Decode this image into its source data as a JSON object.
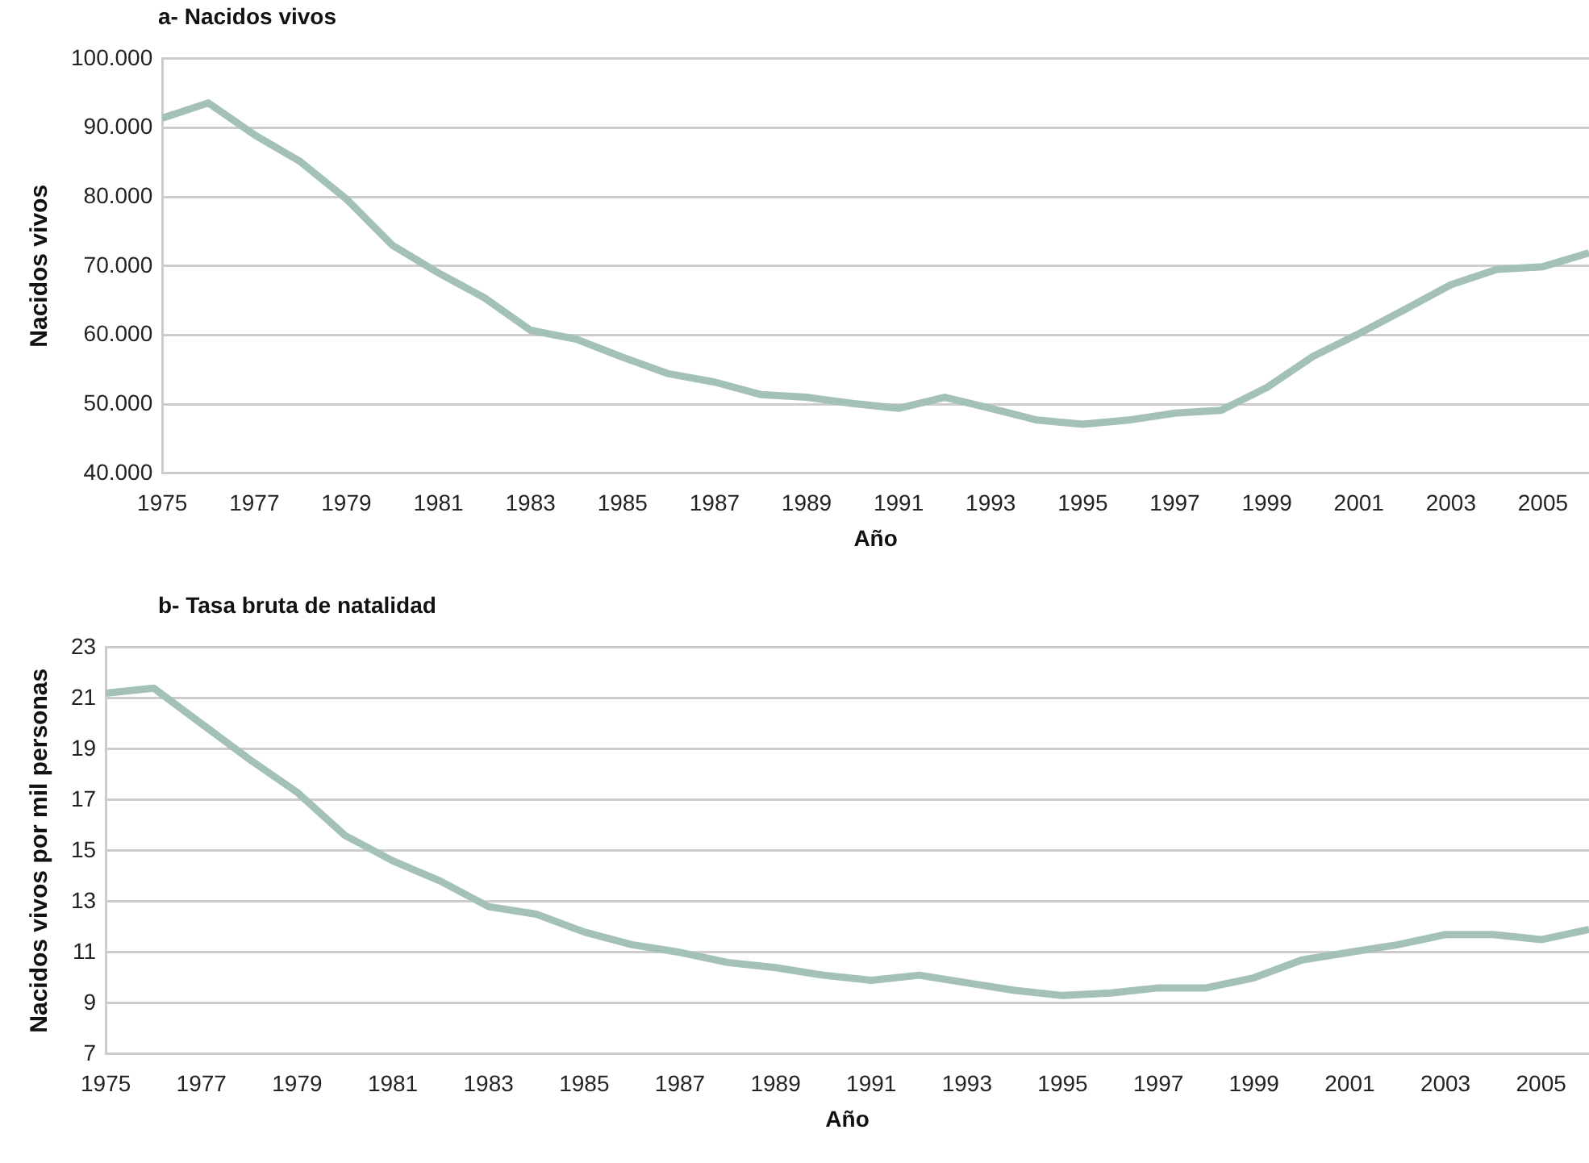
{
  "chart_data": [
    {
      "type": "line",
      "title": "a- Nacidos vivos",
      "xlabel": "Año",
      "ylabel": "Nacidos vivos",
      "color": "#a3c2b5",
      "grid": "y",
      "marker": "none",
      "line_style": "solid",
      "x": [
        1975,
        1976,
        1977,
        1978,
        1979,
        1980,
        1981,
        1982,
        1983,
        1984,
        1985,
        1986,
        1987,
        1988,
        1989,
        1990,
        1991,
        1992,
        1993,
        1994,
        1995,
        1996,
        1997,
        1998,
        1999,
        2000,
        2001,
        2002,
        2003,
        2004,
        2005,
        2006
      ],
      "values": [
        91400,
        93600,
        89000,
        85100,
        79700,
        73000,
        69000,
        65400,
        60700,
        59400,
        56800,
        54400,
        53200,
        51400,
        51000,
        50100,
        49400,
        51000,
        49400,
        47700,
        47100,
        47700,
        48700,
        49100,
        52400,
        56900,
        60200,
        63700,
        67300,
        69500,
        69900,
        71900
      ],
      "xlim": [
        1975,
        2006
      ],
      "xticks": [
        1975,
        1977,
        1979,
        1981,
        1983,
        1985,
        1987,
        1989,
        1991,
        1993,
        1995,
        1997,
        1999,
        2001,
        2003,
        2005
      ],
      "ylim": [
        40000,
        100000
      ],
      "yticks": [
        {
          "value": 40000,
          "label": "40.000"
        },
        {
          "value": 50000,
          "label": "50.000"
        },
        {
          "value": 60000,
          "label": "60.000"
        },
        {
          "value": 70000,
          "label": "70.000"
        },
        {
          "value": 80000,
          "label": "80.000"
        },
        {
          "value": 90000,
          "label": "90.000"
        },
        {
          "value": 100000,
          "label": "100.000"
        }
      ]
    },
    {
      "type": "line",
      "title": "b- Tasa bruta de natalidad",
      "xlabel": "Año",
      "ylabel": "Nacidos vivos por mil personas",
      "color": "#a3c2b5",
      "grid": "y",
      "marker": "none",
      "line_style": "solid",
      "x": [
        1975,
        1976,
        1977,
        1978,
        1979,
        1980,
        1981,
        1982,
        1983,
        1984,
        1985,
        1986,
        1987,
        1988,
        1989,
        1990,
        1991,
        1992,
        1993,
        1994,
        1995,
        1996,
        1997,
        1998,
        1999,
        2000,
        2001,
        2002,
        2003,
        2004,
        2005,
        2006
      ],
      "values": [
        21.2,
        21.4,
        20.0,
        18.6,
        17.3,
        15.6,
        14.6,
        13.8,
        12.8,
        12.5,
        11.8,
        11.3,
        11.0,
        10.6,
        10.4,
        10.1,
        9.9,
        10.1,
        9.8,
        9.5,
        9.3,
        9.4,
        9.6,
        9.6,
        10.0,
        10.7,
        11.0,
        11.3,
        11.7,
        11.7,
        11.5,
        11.9
      ],
      "xlim": [
        1975,
        2006
      ],
      "xticks": [
        1975,
        1977,
        1979,
        1981,
        1983,
        1985,
        1987,
        1989,
        1991,
        1993,
        1995,
        1997,
        1999,
        2001,
        2003,
        2005
      ],
      "ylim": [
        7,
        23
      ],
      "yticks": [
        7,
        9,
        11,
        13,
        15,
        17,
        19,
        21,
        23
      ]
    }
  ]
}
